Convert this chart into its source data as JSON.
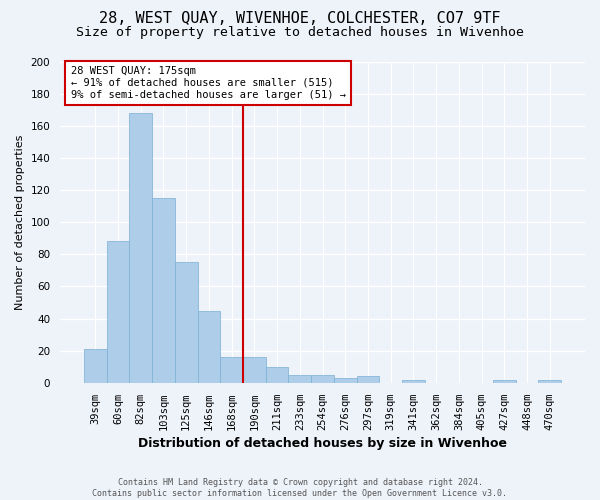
{
  "title": "28, WEST QUAY, WIVENHOE, COLCHESTER, CO7 9TF",
  "subtitle": "Size of property relative to detached houses in Wivenhoe",
  "xlabel": "Distribution of detached houses by size in Wivenhoe",
  "ylabel": "Number of detached properties",
  "bar_labels": [
    "39sqm",
    "60sqm",
    "82sqm",
    "103sqm",
    "125sqm",
    "146sqm",
    "168sqm",
    "190sqm",
    "211sqm",
    "233sqm",
    "254sqm",
    "276sqm",
    "297sqm",
    "319sqm",
    "341sqm",
    "362sqm",
    "384sqm",
    "405sqm",
    "427sqm",
    "448sqm",
    "470sqm"
  ],
  "bar_values": [
    21,
    88,
    168,
    115,
    75,
    45,
    16,
    16,
    10,
    5,
    5,
    3,
    4,
    0,
    2,
    0,
    0,
    0,
    2,
    0,
    2
  ],
  "bar_color": "#aecde8",
  "bar_edge_color": "#7aafd4",
  "property_line_x": 6.5,
  "annotation_text": "28 WEST QUAY: 175sqm\n← 91% of detached houses are smaller (515)\n9% of semi-detached houses are larger (51) →",
  "annotation_box_color": "#ffffff",
  "annotation_border_color": "#cc0000",
  "vline_color": "#cc0000",
  "ylim": [
    0,
    200
  ],
  "yticks": [
    0,
    20,
    40,
    60,
    80,
    100,
    120,
    140,
    160,
    180,
    200
  ],
  "title_fontsize": 11,
  "subtitle_fontsize": 9.5,
  "xlabel_fontsize": 9,
  "ylabel_fontsize": 8,
  "tick_fontsize": 7.5,
  "annotation_fontsize": 7.5,
  "footer_text": "Contains HM Land Registry data © Crown copyright and database right 2024.\nContains public sector information licensed under the Open Government Licence v3.0.",
  "bg_color": "#eef2f9",
  "grid_color": "#ffffff"
}
